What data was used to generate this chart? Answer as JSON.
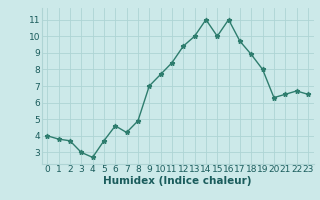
{
  "x": [
    0,
    1,
    2,
    3,
    4,
    5,
    6,
    7,
    8,
    9,
    10,
    11,
    12,
    13,
    14,
    15,
    16,
    17,
    18,
    19,
    20,
    21,
    22,
    23
  ],
  "y": [
    4.0,
    3.8,
    3.7,
    3.0,
    2.7,
    3.7,
    4.6,
    4.2,
    4.9,
    7.0,
    7.7,
    8.4,
    9.4,
    10.0,
    11.0,
    10.0,
    11.0,
    9.7,
    8.9,
    8.0,
    6.3,
    6.5,
    6.7,
    6.5
  ],
  "line_color": "#2e7d6e",
  "marker": "*",
  "marker_size": 3.5,
  "bg_color": "#cce9e9",
  "grid_color": "#aed4d4",
  "xlabel": "Humidex (Indice chaleur)",
  "xlim": [
    -0.5,
    23.5
  ],
  "ylim": [
    2.3,
    11.7
  ],
  "yticks": [
    3,
    4,
    5,
    6,
    7,
    8,
    9,
    10,
    11
  ],
  "xticks": [
    0,
    1,
    2,
    3,
    4,
    5,
    6,
    7,
    8,
    9,
    10,
    11,
    12,
    13,
    14,
    15,
    16,
    17,
    18,
    19,
    20,
    21,
    22,
    23
  ],
  "tick_fontsize": 6.5,
  "xlabel_fontsize": 7.5,
  "line_width": 1.0
}
